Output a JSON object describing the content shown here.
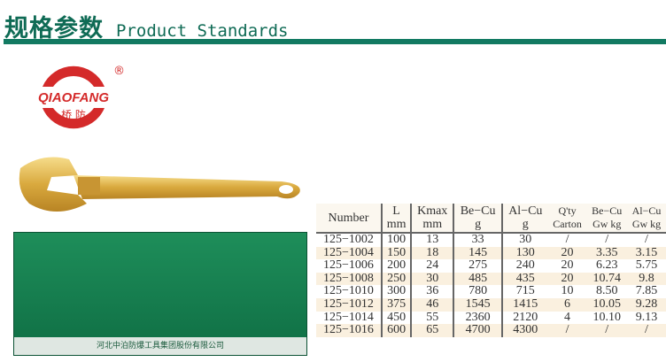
{
  "header": {
    "title_cn": "规格参数",
    "title_en": "Product Standards"
  },
  "logo": {
    "brand": "QIAOFANG",
    "brand_cn": "桥防",
    "registered": "®",
    "color": "#d42a2a"
  },
  "package": {
    "company": "河北中泊防爆工具集团股份有限公司"
  },
  "colors": {
    "accent": "#127a62"
  },
  "table": {
    "headers": [
      [
        "Number",
        ""
      ],
      [
        "L",
        "mm"
      ],
      [
        "Kmax",
        "mm"
      ],
      [
        "Be−Cu",
        "g"
      ],
      [
        "Al−Cu",
        "g"
      ],
      [
        "Q'ty",
        "Carton"
      ],
      [
        "Be−Cu",
        "Gw kg"
      ],
      [
        "Al−Cu",
        "Gw kg"
      ]
    ],
    "rows": [
      [
        "125−1002",
        "100",
        "13",
        "33",
        "30",
        "/",
        "/",
        "/"
      ],
      [
        "125−1004",
        "150",
        "18",
        "145",
        "130",
        "20",
        "3.35",
        "3.15"
      ],
      [
        "125−1006",
        "200",
        "24",
        "275",
        "240",
        "20",
        "6.23",
        "5.75"
      ],
      [
        "125−1008",
        "250",
        "30",
        "485",
        "435",
        "20",
        "10.74",
        "9.8"
      ],
      [
        "125−1010",
        "300",
        "36",
        "780",
        "715",
        "10",
        "8.50",
        "7.85"
      ],
      [
        "125−1012",
        "375",
        "46",
        "1545",
        "1415",
        "6",
        "10.05",
        "9.28"
      ],
      [
        "125−1014",
        "450",
        "55",
        "2360",
        "2120",
        "4",
        "10.10",
        "9.13"
      ],
      [
        "125−1016",
        "600",
        "65",
        "4700",
        "4300",
        "/",
        "/",
        "/"
      ]
    ]
  }
}
